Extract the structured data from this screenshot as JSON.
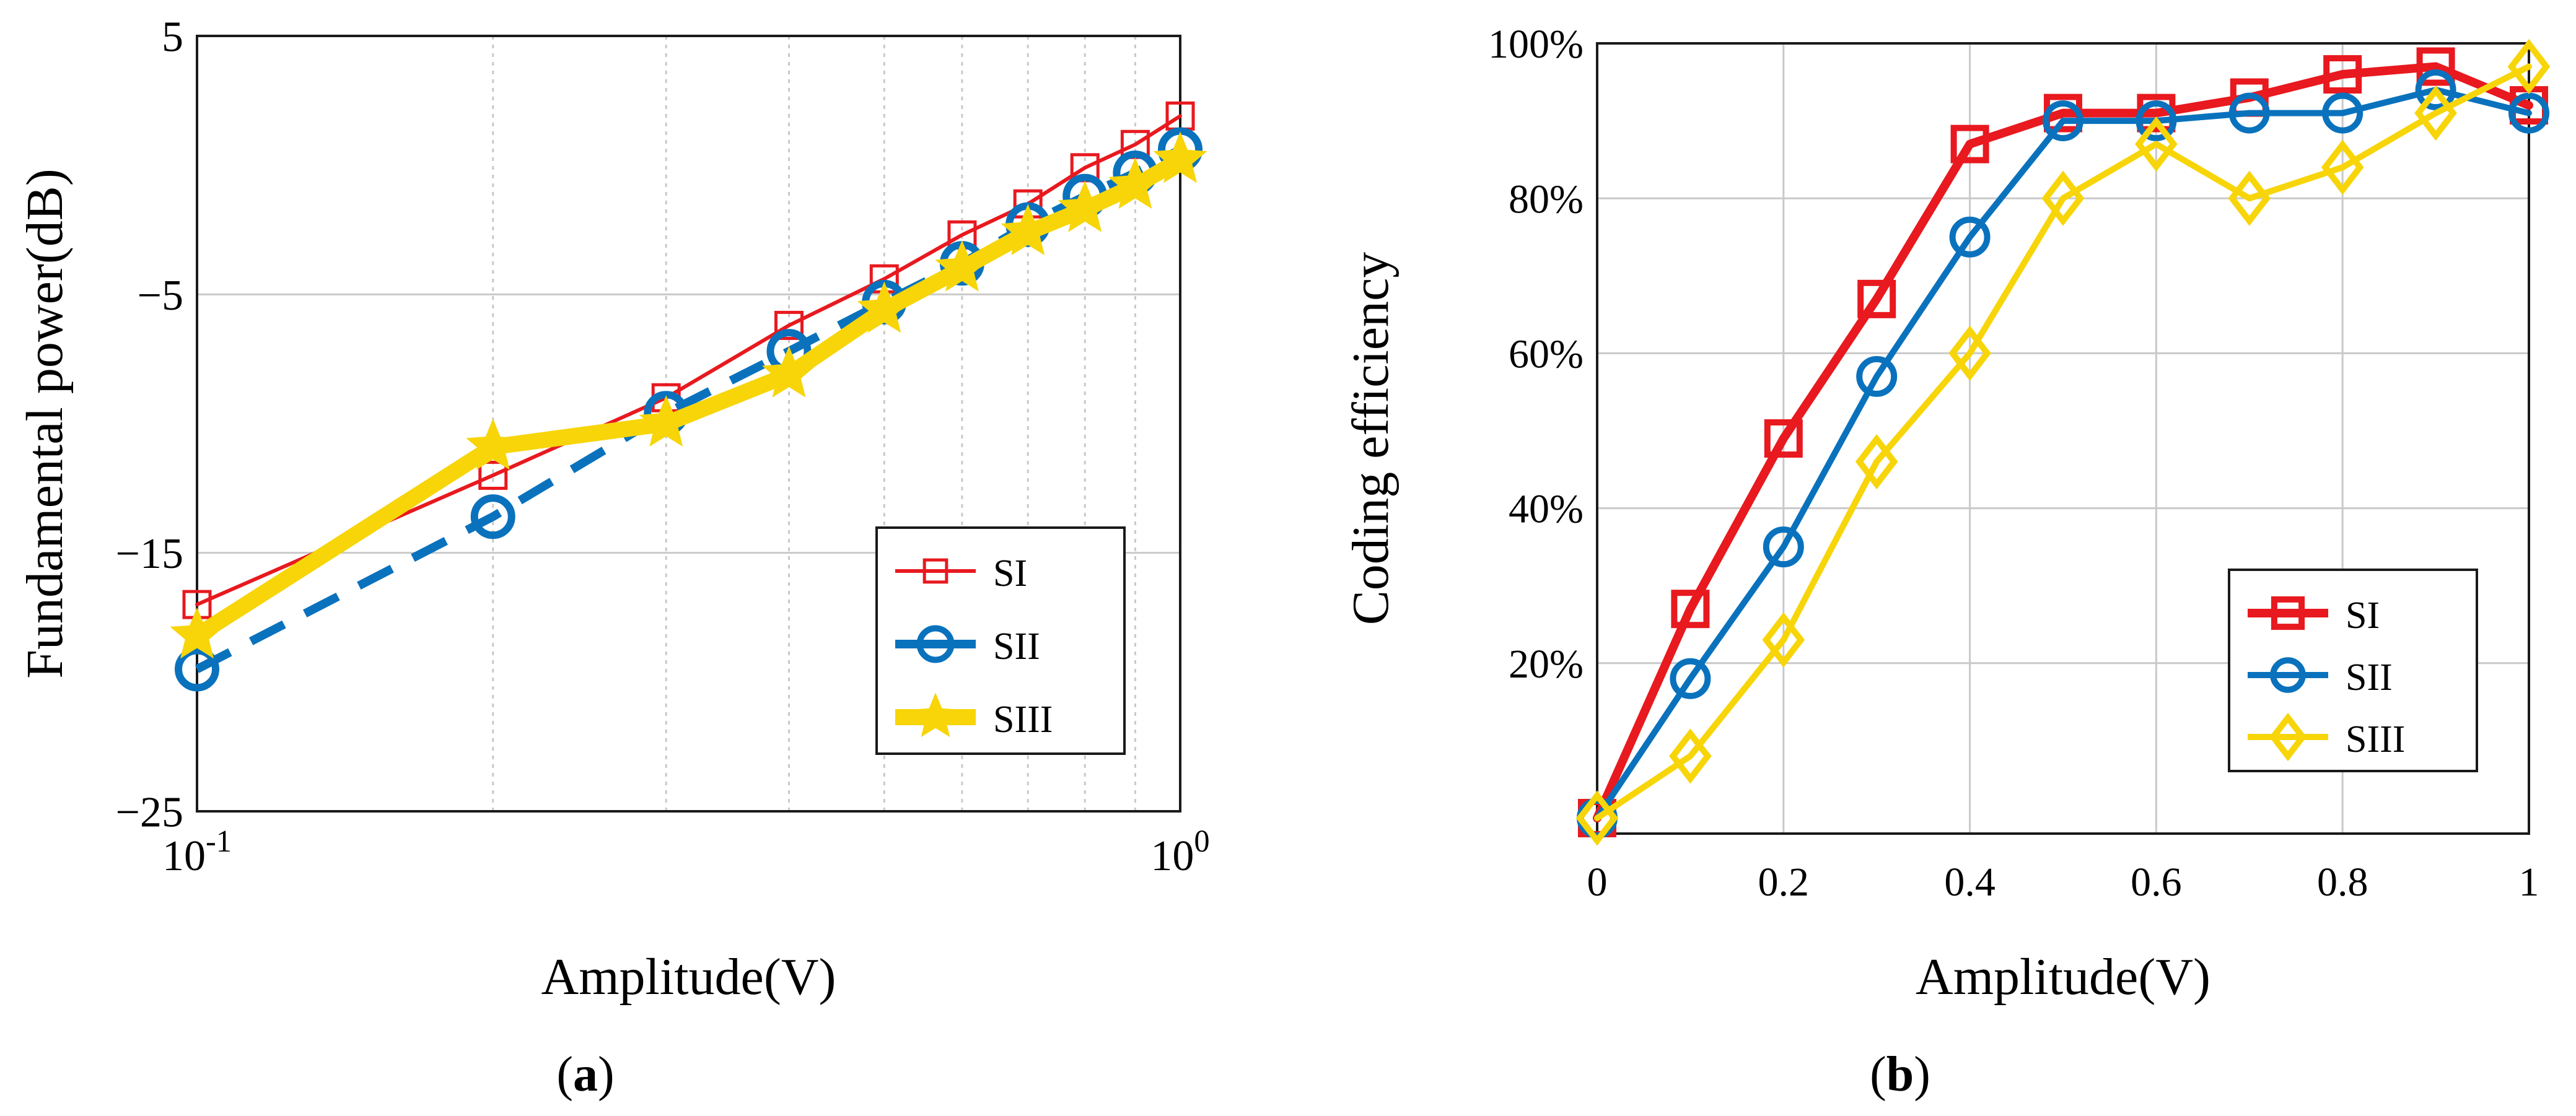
{
  "chart_data": [
    {
      "id": "a",
      "type": "line",
      "xscale": "log",
      "xlim": [
        0.1,
        1
      ],
      "ylim": [
        -25,
        5
      ],
      "yticks": [
        5,
        -5,
        -15,
        -25
      ],
      "ytick_labels": [
        "5",
        "−5",
        "−15",
        "−25"
      ],
      "xtick_labels": [
        {
          "base": "10",
          "exp": "-1",
          "value": 0.1
        },
        {
          "base": "10",
          "exp": "0",
          "value": 1
        }
      ],
      "xlabel": "Amplitude(V)",
      "ylabel": "Fundamental power(dB)",
      "grid": true,
      "legend_position": "lower-right",
      "x": [
        0.1,
        0.2,
        0.3,
        0.4,
        0.5,
        0.6,
        0.7,
        0.8,
        0.9,
        1.0
      ],
      "series": [
        {
          "name": "SI",
          "color": "#e8191f",
          "marker": "square",
          "style": "solid",
          "weight": "thin",
          "values": [
            -17.0,
            -12.0,
            -9.0,
            -6.2,
            -4.4,
            -2.7,
            -1.5,
            -0.1,
            0.8,
            1.9
          ]
        },
        {
          "name": "SII",
          "color": "#0a72bd",
          "marker": "circle",
          "style": "dashed",
          "weight": "thick",
          "values": [
            -19.5,
            -13.6,
            -9.6,
            -7.2,
            -5.3,
            -3.8,
            -2.3,
            -1.2,
            -0.3,
            0.6
          ]
        },
        {
          "name": "SIII",
          "color": "#f7d508",
          "marker": "star",
          "style": "solid",
          "weight": "heavy",
          "values": [
            -18.2,
            -10.9,
            -10.0,
            -8.1,
            -5.6,
            -4.0,
            -2.6,
            -1.7,
            -0.8,
            0.2
          ]
        }
      ]
    },
    {
      "id": "b",
      "type": "line",
      "xlim": [
        0,
        1
      ],
      "ylim": [
        -0.02,
        1.0
      ],
      "yticks": [
        0.2,
        0.4,
        0.6,
        0.8,
        1.0
      ],
      "ytick_labels": [
        "20%",
        "40%",
        "60%",
        "80%",
        "100%"
      ],
      "xticks": [
        0,
        0.2,
        0.4,
        0.6,
        0.8,
        1.0
      ],
      "xtick_labels": [
        "0",
        "0.2",
        "0.4",
        "0.6",
        "0.8",
        "1"
      ],
      "xlabel": "Amplitude(V)",
      "ylabel": "Coding efficiency",
      "grid": true,
      "legend_position": "lower-right",
      "x": [
        0,
        0.1,
        0.2,
        0.3,
        0.4,
        0.5,
        0.6,
        0.7,
        0.8,
        0.9,
        1.0
      ],
      "series": [
        {
          "name": "SI",
          "color": "#e8191f",
          "marker": "square",
          "style": "solid",
          "weight": "thick",
          "values": [
            0.0,
            0.27,
            0.49,
            0.67,
            0.87,
            0.91,
            0.91,
            0.93,
            0.96,
            0.97,
            0.92
          ]
        },
        {
          "name": "SII",
          "color": "#0a72bd",
          "marker": "circle",
          "style": "solid",
          "weight": "medium",
          "values": [
            0.0,
            0.18,
            0.35,
            0.57,
            0.75,
            0.9,
            0.9,
            0.91,
            0.91,
            0.94,
            0.91
          ]
        },
        {
          "name": "SIII",
          "color": "#f7d508",
          "marker": "diamond",
          "style": "solid",
          "weight": "medium",
          "values": [
            0.0,
            0.08,
            0.23,
            0.46,
            0.6,
            0.8,
            0.87,
            0.8,
            0.84,
            0.91,
            0.97
          ]
        }
      ]
    }
  ],
  "captions": {
    "a": "a",
    "b": "b"
  }
}
